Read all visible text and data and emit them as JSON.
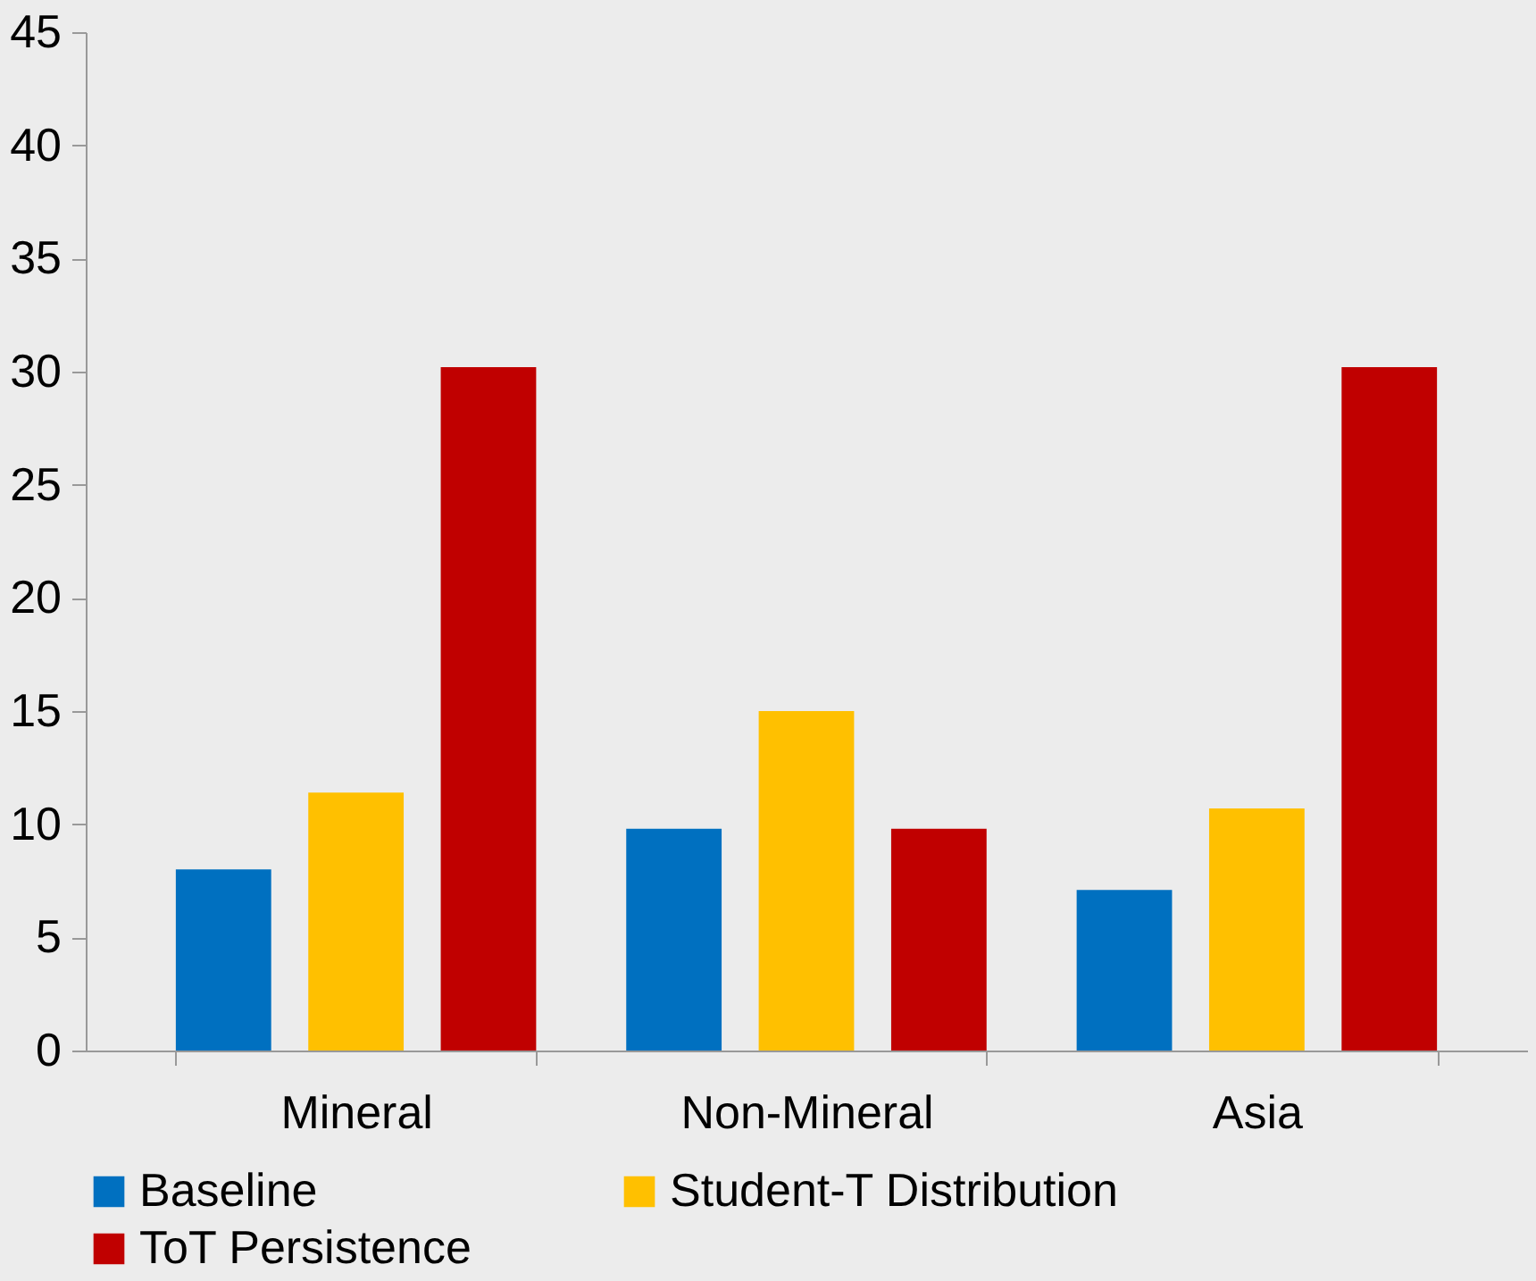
{
  "chart_data": {
    "type": "bar",
    "categories": [
      "Mineral",
      "Non-Mineral",
      "Asia"
    ],
    "series": [
      {
        "name": "Baseline",
        "color": "#0070c0",
        "values": [
          8.0,
          9.8,
          7.1
        ]
      },
      {
        "name": "Student-T Distribution",
        "color": "#ffc000",
        "values": [
          11.4,
          15.0,
          10.7
        ]
      },
      {
        "name": "ToT Persistence",
        "color": "#c00000",
        "values": [
          30.2,
          9.8,
          30.2
        ]
      }
    ],
    "ylim": [
      0,
      45
    ],
    "yticks": [
      0,
      5,
      10,
      15,
      20,
      25,
      30,
      35,
      40,
      45
    ],
    "grid": false,
    "legend": "bottom"
  }
}
